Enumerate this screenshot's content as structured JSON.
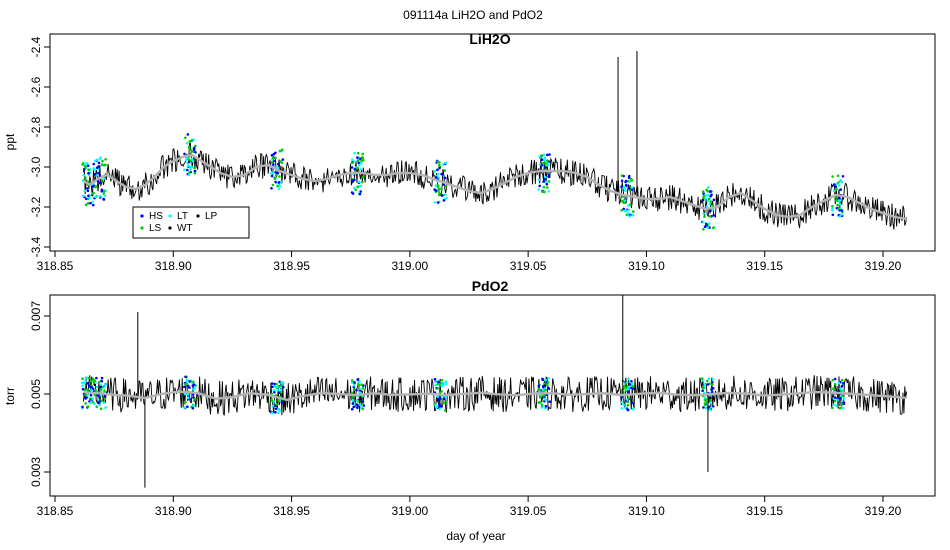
{
  "figure_title": "091114a   LiH2O and PdO2",
  "chart_data": [
    {
      "type": "line",
      "title": "LiH2O",
      "xlabel": "",
      "ylabel": "ppt",
      "xlim": [
        318.85,
        319.215
      ],
      "ylim": [
        -3.4,
        -2.4
      ],
      "xticks": [
        "318.85",
        "318.90",
        "318.95",
        "319.00",
        "319.05",
        "319.10",
        "319.15",
        "319.20"
      ],
      "yticks": [
        "-3.4",
        "-3.2",
        "-3.0",
        "-2.8",
        "-2.6",
        "-2.4"
      ],
      "grid": false,
      "legend_position": "bottom-left",
      "legend": [
        {
          "label": "HS",
          "color": "#0000ff"
        },
        {
          "label": "LT",
          "color": "#00ffff"
        },
        {
          "label": "LP",
          "color": "#000000"
        },
        {
          "label": "LS",
          "color": "#00cd00"
        },
        {
          "label": "WT",
          "color": "#000000"
        }
      ],
      "series": [
        {
          "color": "#000000",
          "x": [
            318.862,
            318.865,
            318.868,
            318.872,
            318.876,
            318.88,
            318.884,
            318.888,
            318.892,
            318.896,
            318.9,
            318.904,
            318.908,
            318.912,
            318.916,
            318.92,
            318.925,
            318.93,
            318.935,
            318.94,
            318.945,
            318.95,
            318.955,
            318.96,
            318.965,
            318.97,
            318.975,
            318.98,
            318.985,
            318.99,
            318.995,
            319.0,
            319.005,
            319.01,
            319.015,
            319.02,
            319.025,
            319.03,
            319.035,
            319.04,
            319.045,
            319.05,
            319.055,
            319.06,
            319.065,
            319.07,
            319.075,
            319.08,
            319.085,
            319.09,
            319.095,
            319.1,
            319.105,
            319.11,
            319.115,
            319.12,
            319.125,
            319.13,
            319.135,
            319.14,
            319.145,
            319.15,
            319.155,
            319.16,
            319.165,
            319.17,
            319.175,
            319.18,
            319.185,
            319.19,
            319.195,
            319.2,
            319.205,
            319.21
          ],
          "y": [
            -3.07,
            -3.09,
            -3.06,
            -3.04,
            -3.07,
            -3.1,
            -3.11,
            -3.09,
            -3.05,
            -3.0,
            -2.97,
            -2.95,
            -2.94,
            -2.97,
            -3.0,
            -3.03,
            -3.05,
            -3.04,
            -3.0,
            -2.99,
            -3.02,
            -3.04,
            -3.06,
            -3.07,
            -3.06,
            -3.04,
            -3.03,
            -3.03,
            -3.04,
            -3.04,
            -3.03,
            -3.03,
            -3.04,
            -3.06,
            -3.08,
            -3.1,
            -3.12,
            -3.13,
            -3.11,
            -3.08,
            -3.05,
            -3.03,
            -3.02,
            -3.02,
            -3.02,
            -3.03,
            -3.05,
            -3.09,
            -3.12,
            -3.14,
            -3.15,
            -3.16,
            -3.16,
            -3.15,
            -3.17,
            -3.19,
            -3.21,
            -3.2,
            -3.15,
            -3.13,
            -3.17,
            -3.21,
            -3.24,
            -3.25,
            -3.24,
            -3.2,
            -3.17,
            -3.14,
            -3.15,
            -3.18,
            -3.21,
            -3.23,
            -3.25,
            -3.26
          ]
        }
      ],
      "spikes": [
        {
          "x": 319.088,
          "y_top": -2.45
        },
        {
          "x": 319.096,
          "y_top": -2.42
        }
      ]
    },
    {
      "type": "line",
      "title": "PdO2",
      "xlabel": "day of year",
      "ylabel": "torr",
      "xlim": [
        318.85,
        319.215
      ],
      "ylim": [
        0.0025,
        0.0075
      ],
      "xticks": [
        "318.85",
        "318.90",
        "318.95",
        "319.00",
        "319.05",
        "319.10",
        "319.15",
        "319.20"
      ],
      "yticks": [
        "0.003",
        "0.005",
        "0.007"
      ],
      "grid": false,
      "series": [
        {
          "color": "#000000",
          "x": [
            318.862,
            318.868,
            318.875,
            318.882,
            318.888,
            318.895,
            318.902,
            318.91,
            318.918,
            318.925,
            318.932,
            318.94,
            318.948,
            318.955,
            318.962,
            318.97,
            318.978,
            318.985,
            318.992,
            319.0,
            319.008,
            319.015,
            319.022,
            319.03,
            319.038,
            319.045,
            319.052,
            319.06,
            319.068,
            319.075,
            319.082,
            319.09,
            319.098,
            319.105,
            319.112,
            319.12,
            319.128,
            319.135,
            319.142,
            319.15,
            319.158,
            319.165,
            319.172,
            319.18,
            319.188,
            319.195,
            319.202,
            319.21
          ],
          "y": [
            0.00505,
            0.00502,
            0.00498,
            0.00495,
            0.0049,
            0.005,
            0.00506,
            0.00503,
            0.00488,
            0.00492,
            0.00502,
            0.00498,
            0.00485,
            0.00495,
            0.00502,
            0.005,
            0.00497,
            0.00502,
            0.00498,
            0.00499,
            0.00501,
            0.00497,
            0.005,
            0.00503,
            0.00499,
            0.00497,
            0.00501,
            0.00502,
            0.00498,
            0.005,
            0.00502,
            0.00497,
            0.00501,
            0.00503,
            0.00499,
            0.00497,
            0.005,
            0.00503,
            0.00501,
            0.00496,
            0.00499,
            0.00502,
            0.00505,
            0.00503,
            0.005,
            0.00497,
            0.00494,
            0.0049
          ]
        }
      ],
      "spikes": [
        {
          "x": 319.09,
          "y_top": 0.00755
        },
        {
          "x": 318.885,
          "y_top": 0.0071
        },
        {
          "x": 319.126,
          "y_bottom": 0.003
        },
        {
          "x": 318.888,
          "y_bottom": 0.0026
        }
      ]
    }
  ],
  "markers": {
    "series_color": "#000000",
    "smooth_color": "#b3b3b3",
    "HS": "#0000ff",
    "LT": "#00ffff",
    "LS": "#00cd00",
    "calibration_x": [
      318.864,
      318.869,
      318.907,
      318.944,
      318.978,
      319.013,
      319.057,
      319.092,
      319.126,
      319.181
    ]
  }
}
